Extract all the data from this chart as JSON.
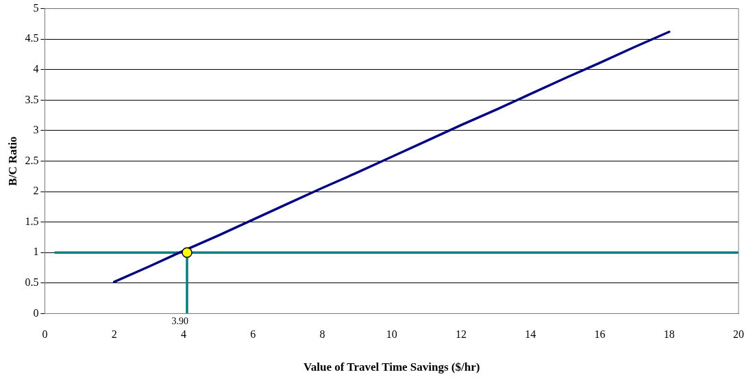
{
  "chart_data": {
    "type": "line",
    "xlabel": "Value of Travel Time Savings ($/hr)",
    "ylabel": "B/C Ratio",
    "xlim": [
      0,
      20
    ],
    "xticks": [
      0,
      2,
      4,
      6,
      8,
      10,
      12,
      14,
      16,
      18,
      20
    ],
    "ylim": [
      0,
      5
    ],
    "yticks": [
      0,
      0.5,
      1,
      1.5,
      2,
      2.5,
      3,
      3.5,
      4,
      4.5,
      5
    ],
    "grid": "y",
    "legend": false,
    "line_style": "solid",
    "series": [
      {
        "color": "#000080",
        "x": [
          2,
          3,
          4,
          5,
          6,
          7,
          8,
          9,
          10,
          11,
          12,
          13,
          14,
          15,
          16,
          17,
          18
        ],
        "values": [
          0.52,
          0.77,
          1.03,
          1.28,
          1.54,
          1.8,
          2.06,
          2.31,
          2.57,
          2.83,
          3.09,
          3.34,
          3.6,
          3.86,
          4.11,
          4.37,
          4.62
        ]
      },
      {
        "type": "line",
        "color": "#008080",
        "x": [
          0.3,
          20
        ],
        "values": [
          1,
          1
        ]
      },
      {
        "type": "line",
        "color": "#008080",
        "x": [
          4.1,
          4.1
        ],
        "values": [
          0,
          1
        ]
      },
      {
        "type": "scatter",
        "color": "#ffff00",
        "x": [
          4.1
        ],
        "values": [
          1
        ]
      }
    ],
    "annotations": [
      "3.90"
    ]
  }
}
